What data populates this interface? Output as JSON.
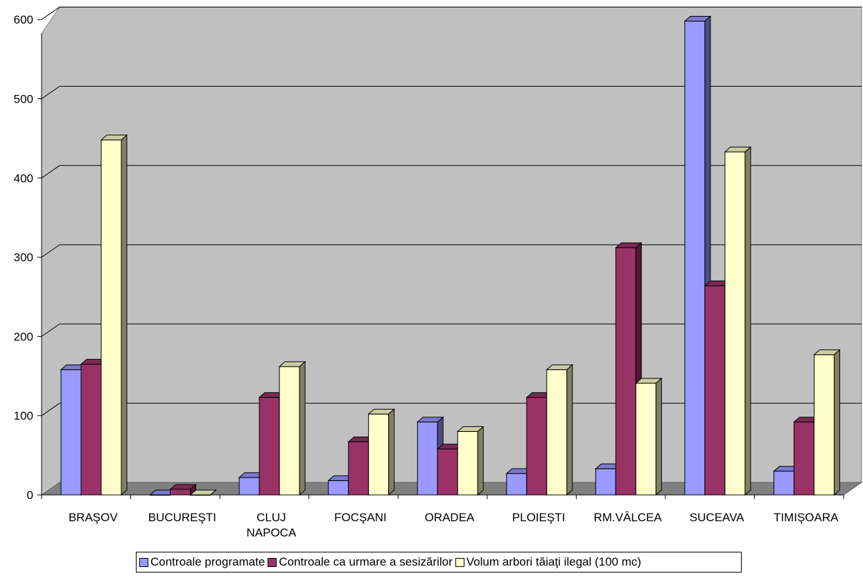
{
  "chart_data": {
    "type": "bar",
    "categories": [
      "BRAŞOV",
      "BUCUREŞTI",
      "CLUJ NAPOCA",
      "FOCŞANI",
      "ORADEA",
      "PLOIEŞTI",
      "RM.VÂLCEA",
      "SUCEAVA",
      "TIMIŞOARA"
    ],
    "series": [
      {
        "name": "Controale programate",
        "color": "#9999ff",
        "values": [
          158,
          0,
          22,
          18,
          92,
          27,
          33,
          598,
          30
        ]
      },
      {
        "name": "Controale ca urmare a sesizărilor",
        "color": "#993366",
        "values": [
          165,
          7,
          123,
          67,
          58,
          123,
          312,
          264,
          92
        ]
      },
      {
        "name": "Volum arbori tăiaţi ilegal (100 mc)",
        "color": "#ffffcc",
        "values": [
          448,
          0,
          162,
          102,
          80,
          158,
          141,
          433,
          177
        ]
      }
    ],
    "yticks": [
      "0",
      "100",
      "200",
      "300",
      "400",
      "500",
      "600"
    ],
    "ylim": [
      0,
      600
    ],
    "grid": true,
    "legend_position": "bottom",
    "wall_color": "#c0c0c0",
    "floor_color": "#808080"
  },
  "legend": {
    "items": [
      {
        "label": "Controale programate",
        "color": "#9999ff"
      },
      {
        "label": "Controale ca urmare a sesizărilor",
        "color": "#993366"
      },
      {
        "label": "Volum arbori tăiaţi ilegal (100 mc)",
        "color": "#ffffcc"
      }
    ]
  }
}
